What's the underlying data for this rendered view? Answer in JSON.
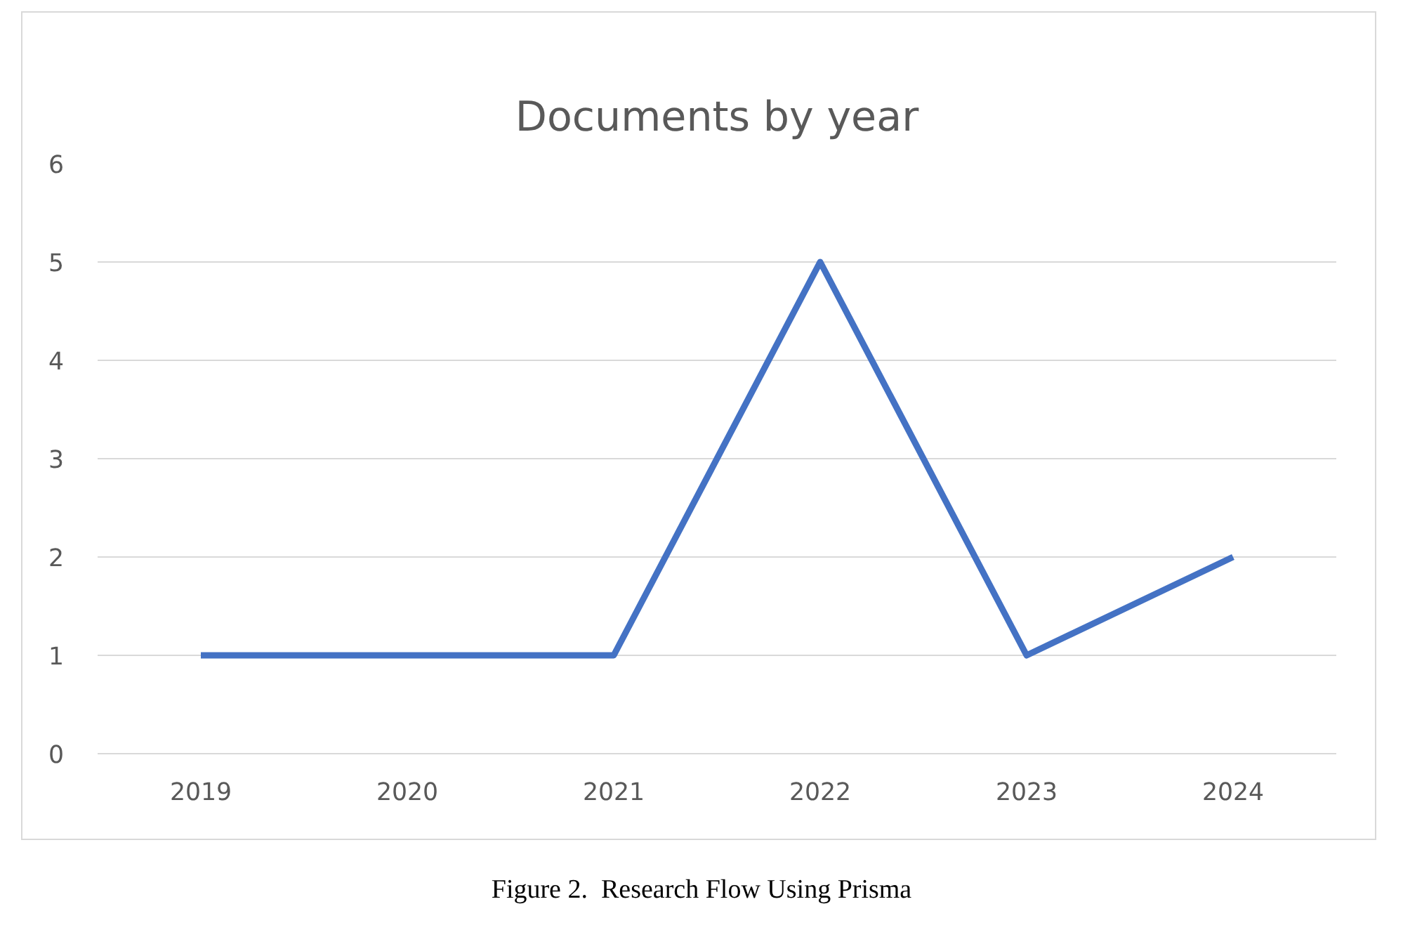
{
  "chart_data": {
    "type": "line",
    "title": "Documents by year",
    "categories": [
      "2019",
      "2020",
      "2021",
      "2022",
      "2023",
      "2024"
    ],
    "series": [
      {
        "color": "#4472c4",
        "values": [
          1,
          1,
          1,
          5,
          1,
          2
        ]
      }
    ],
    "ylim": [
      0,
      6
    ],
    "yticks": [
      0,
      1,
      2,
      3,
      4,
      5,
      6
    ],
    "grid": "y",
    "marker": "none",
    "line_style": "solid",
    "annotations": [
      "Figure 2.  Research Flow Using Prisma"
    ]
  }
}
